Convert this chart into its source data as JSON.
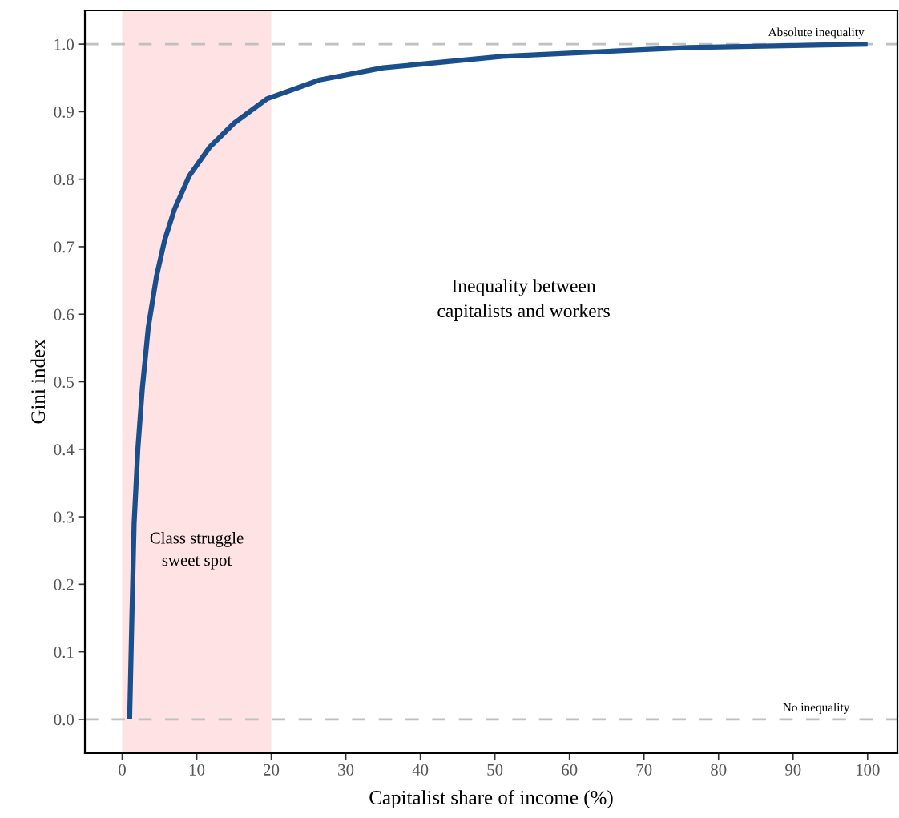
{
  "chart_data": {
    "type": "line",
    "xlabel": "Capitalist share of income (%)",
    "ylabel": "Gini index",
    "x": [
      1,
      1.3,
      1.6,
      2.1,
      2.7,
      3.5,
      4.6,
      5.7,
      7.0,
      9,
      11.7,
      15,
      19.4,
      26.5,
      35,
      51,
      76,
      100
    ],
    "series": [
      {
        "color": "#1a4f8c",
        "values": [
          0,
          0.15,
          0.29,
          0.4,
          0.49,
          0.58,
          0.656,
          0.71,
          0.755,
          0.805,
          0.847,
          0.883,
          0.919,
          0.947,
          0.965,
          0.982,
          0.995,
          1.0
        ]
      }
    ],
    "xlim": [
      -5,
      104
    ],
    "ylim": [
      -0.05,
      1.05
    ],
    "xticks": [
      0,
      10,
      20,
      30,
      40,
      50,
      60,
      70,
      80,
      90,
      100
    ],
    "yticks": [
      {
        "value": 0,
        "label": "0.0"
      },
      0.1,
      0.2,
      0.3,
      0.4,
      0.5,
      0.6,
      0.7,
      0.8,
      0.9,
      {
        "value": 1,
        "label": "1.0"
      }
    ],
    "ref_lines": [
      {
        "axis": "y",
        "value": 1,
        "label": "Absolute inequality",
        "color": "#c0c0c0",
        "line_style": "dashed"
      },
      {
        "axis": "y",
        "value": 0,
        "label": "No inequality",
        "color": "#c0c0c0",
        "line_style": "dashed"
      }
    ],
    "bands": [
      {
        "axis": "x",
        "from": 0,
        "to": 20,
        "label": "Class struggle\nsweet spot",
        "color": "#ffe3e4"
      }
    ],
    "annotations": [
      "Inequality between\ncapitalists and workers"
    ],
    "grid": false,
    "legend": false,
    "marker": "none",
    "line_style": "solid"
  }
}
